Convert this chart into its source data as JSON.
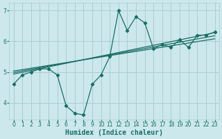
{
  "xlabel": "Humidex (Indice chaleur)",
  "bg_color": "#cce8ec",
  "grid_color": "#aacdd4",
  "line_color": "#1a6e65",
  "x_data": [
    0,
    1,
    2,
    3,
    4,
    5,
    6,
    7,
    8,
    9,
    10,
    11,
    12,
    13,
    14,
    15,
    16,
    17,
    18,
    19,
    20,
    21,
    22,
    23
  ],
  "y_data": [
    4.6,
    4.9,
    5.0,
    5.1,
    5.1,
    4.9,
    3.9,
    3.65,
    3.6,
    4.6,
    4.9,
    5.5,
    7.0,
    6.35,
    6.8,
    6.6,
    5.75,
    5.9,
    5.8,
    6.05,
    5.8,
    6.2,
    6.2,
    6.3
  ],
  "trend1_x": [
    0,
    23
  ],
  "trend1_y": [
    4.93,
    6.28
  ],
  "trend2_x": [
    0,
    23
  ],
  "trend2_y": [
    4.98,
    6.18
  ],
  "trend3_x": [
    0,
    23
  ],
  "trend3_y": [
    5.03,
    6.08
  ],
  "ylim": [
    3.45,
    7.25
  ],
  "xlim": [
    -0.5,
    23.5
  ],
  "yticks": [
    4,
    5,
    6,
    7
  ],
  "xtick_labels": [
    "0",
    "1",
    "2",
    "3",
    "4",
    "5",
    "6",
    "7",
    "8",
    "9",
    "10",
    "11",
    "12",
    "13",
    "14",
    "15",
    "16",
    "17",
    "18",
    "19",
    "20",
    "21",
    "22",
    "23"
  ],
  "tick_fontsize": 5.5,
  "label_fontsize": 7
}
